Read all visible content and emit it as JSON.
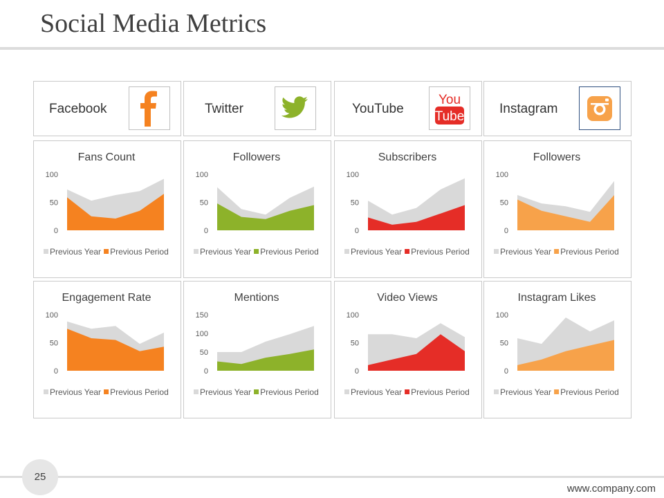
{
  "title": "Social Media Metrics",
  "platforms": [
    {
      "name": "Facebook",
      "icon": "facebook-icon",
      "color": "#f58220"
    },
    {
      "name": "Twitter",
      "icon": "twitter-icon",
      "color": "#8db22a"
    },
    {
      "name": "YouTube",
      "icon": "youtube-icon",
      "color": "#e52d27"
    },
    {
      "name": "Instagram",
      "icon": "instagram-icon",
      "color": "#f7a24a"
    }
  ],
  "page_number": "25",
  "footer_url": "www.company.com",
  "chart_data": [
    {
      "type": "area",
      "title": "Fans Count",
      "color": "#f58220",
      "ylim": [
        0,
        100
      ],
      "yticks": [
        0,
        50,
        100
      ],
      "x": [
        1,
        2,
        3,
        4,
        5
      ],
      "series": [
        {
          "name": "Previous Year",
          "color": "#d9d9d9",
          "values": [
            73,
            53,
            63,
            70,
            92
          ]
        },
        {
          "name": "Previous Period",
          "color": "#f58220",
          "values": [
            59,
            25,
            21,
            35,
            65
          ]
        }
      ]
    },
    {
      "type": "area",
      "title": "Followers",
      "color": "#8db22a",
      "ylim": [
        0,
        100
      ],
      "yticks": [
        0,
        50,
        100
      ],
      "x": [
        1,
        2,
        3,
        4,
        5
      ],
      "series": [
        {
          "name": "Previous Year",
          "color": "#d9d9d9",
          "values": [
            77,
            38,
            28,
            58,
            78
          ]
        },
        {
          "name": "Previous Period",
          "color": "#8db22a",
          "values": [
            48,
            24,
            20,
            35,
            45
          ]
        }
      ]
    },
    {
      "type": "area",
      "title": "Subscribers",
      "color": "#e52d27",
      "ylim": [
        0,
        100
      ],
      "yticks": [
        0,
        50,
        100
      ],
      "x": [
        1,
        2,
        3,
        4,
        5
      ],
      "series": [
        {
          "name": "Previous Year",
          "color": "#d9d9d9",
          "values": [
            53,
            28,
            40,
            73,
            93
          ]
        },
        {
          "name": "Previous Period",
          "color": "#e52d27",
          "values": [
            23,
            10,
            15,
            30,
            45
          ]
        }
      ]
    },
    {
      "type": "area",
      "title": "Followers",
      "color": "#f7a24a",
      "ylim": [
        0,
        100
      ],
      "yticks": [
        0,
        50,
        100
      ],
      "x": [
        1,
        2,
        3,
        4,
        5
      ],
      "series": [
        {
          "name": "Previous Year",
          "color": "#d9d9d9",
          "values": [
            63,
            48,
            43,
            33,
            88
          ]
        },
        {
          "name": "Previous Period",
          "color": "#f7a24a",
          "values": [
            55,
            35,
            25,
            15,
            63
          ]
        }
      ]
    },
    {
      "type": "area",
      "title": "Engagement Rate",
      "color": "#f58220",
      "ylim": [
        0,
        100
      ],
      "yticks": [
        0,
        50,
        100
      ],
      "x": [
        1,
        2,
        3,
        4,
        5
      ],
      "series": [
        {
          "name": "Previous Year",
          "color": "#d9d9d9",
          "values": [
            88,
            75,
            80,
            48,
            68
          ]
        },
        {
          "name": "Previous Period",
          "color": "#f58220",
          "values": [
            75,
            58,
            55,
            35,
            43
          ]
        }
      ]
    },
    {
      "type": "area",
      "title": "Mentions",
      "color": "#8db22a",
      "ylim": [
        0,
        150
      ],
      "yticks": [
        0,
        50,
        100,
        150
      ],
      "x": [
        1,
        2,
        3,
        4,
        5
      ],
      "series": [
        {
          "name": "Previous Year",
          "color": "#d9d9d9",
          "values": [
            50,
            50,
            78,
            98,
            120
          ]
        },
        {
          "name": "Previous Period",
          "color": "#8db22a",
          "values": [
            25,
            18,
            35,
            45,
            57
          ]
        }
      ]
    },
    {
      "type": "area",
      "title": "Video Views",
      "color": "#e52d27",
      "ylim": [
        0,
        100
      ],
      "yticks": [
        0,
        50,
        100
      ],
      "x": [
        1,
        2,
        3,
        4,
        5
      ],
      "series": [
        {
          "name": "Previous Year",
          "color": "#d9d9d9",
          "values": [
            65,
            65,
            58,
            85,
            60
          ]
        },
        {
          "name": "Previous Period",
          "color": "#e52d27",
          "values": [
            10,
            20,
            30,
            65,
            35
          ]
        }
      ]
    },
    {
      "type": "area",
      "title": "Instagram Likes",
      "color": "#f7a24a",
      "ylim": [
        0,
        100
      ],
      "yticks": [
        0,
        50,
        100
      ],
      "x": [
        1,
        2,
        3,
        4,
        5
      ],
      "series": [
        {
          "name": "Previous Year",
          "color": "#d9d9d9",
          "values": [
            58,
            48,
            95,
            70,
            90
          ]
        },
        {
          "name": "Previous Period",
          "color": "#f7a24a",
          "values": [
            10,
            20,
            35,
            45,
            55
          ]
        }
      ]
    }
  ]
}
